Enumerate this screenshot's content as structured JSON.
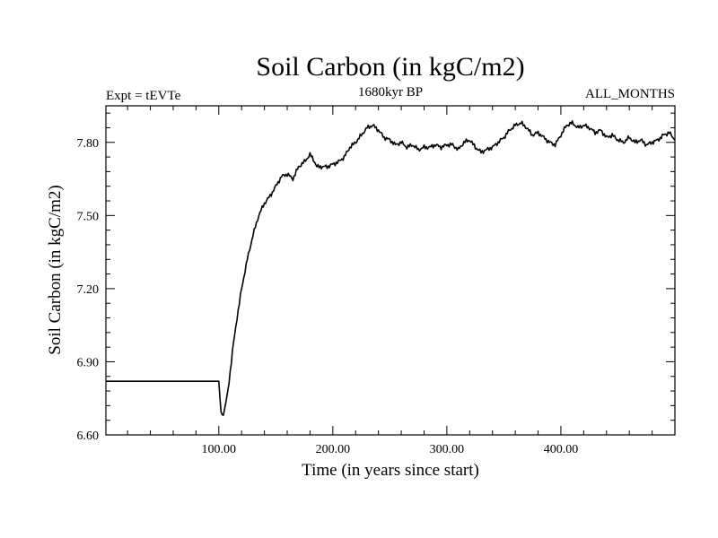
{
  "chart_data": {
    "type": "line",
    "title": "Soil Carbon (in kgC/m2)",
    "subtitle_left": "Expt = tEVTe",
    "subtitle_center": "1680kyr BP",
    "subtitle_right": "ALL_MONTHS",
    "xlabel": "Time (in years since start)",
    "ylabel": "Soil Carbon (in kgC/m2)",
    "xlim": [
      1,
      500
    ],
    "ylim": [
      6.6,
      7.95
    ],
    "x_ticks": [
      100,
      200,
      300,
      400
    ],
    "x_tick_labels": [
      "100.00",
      "200.00",
      "300.00",
      "400.00"
    ],
    "y_ticks": [
      6.6,
      6.9,
      7.2,
      7.5,
      7.8
    ],
    "y_tick_labels": [
      "6.60",
      "6.90",
      "7.20",
      "7.50",
      "7.80"
    ],
    "grid": false,
    "series": [
      {
        "name": "Soil Carbon",
        "color": "#000000",
        "x": [
          1,
          100,
          101,
          102,
          103,
          105,
          108,
          110,
          113,
          116,
          120,
          125,
          130,
          135,
          140,
          145,
          150,
          155,
          160,
          165,
          170,
          175,
          180,
          183,
          186,
          190,
          195,
          200,
          205,
          210,
          215,
          220,
          225,
          230,
          235,
          240,
          245,
          250,
          255,
          260,
          265,
          270,
          275,
          280,
          285,
          290,
          295,
          300,
          305,
          310,
          315,
          320,
          325,
          330,
          335,
          340,
          345,
          350,
          355,
          360,
          365,
          370,
          375,
          380,
          385,
          390,
          395,
          400,
          405,
          410,
          415,
          420,
          425,
          430,
          435,
          440,
          445,
          450,
          455,
          460,
          465,
          470,
          475,
          480,
          485,
          490,
          495,
          500
        ],
        "values": [
          6.82,
          6.82,
          6.75,
          6.7,
          6.68,
          6.7,
          6.78,
          6.86,
          6.98,
          7.08,
          7.2,
          7.32,
          7.42,
          7.5,
          7.55,
          7.58,
          7.62,
          7.66,
          7.67,
          7.65,
          7.7,
          7.72,
          7.75,
          7.73,
          7.7,
          7.7,
          7.7,
          7.71,
          7.72,
          7.74,
          7.78,
          7.8,
          7.83,
          7.86,
          7.87,
          7.85,
          7.82,
          7.81,
          7.79,
          7.8,
          7.78,
          7.79,
          7.77,
          7.78,
          7.78,
          7.79,
          7.78,
          7.79,
          7.79,
          7.77,
          7.8,
          7.81,
          7.78,
          7.76,
          7.77,
          7.78,
          7.8,
          7.82,
          7.85,
          7.87,
          7.88,
          7.86,
          7.83,
          7.84,
          7.82,
          7.8,
          7.79,
          7.83,
          7.87,
          7.88,
          7.86,
          7.87,
          7.86,
          7.84,
          7.85,
          7.82,
          7.83,
          7.81,
          7.8,
          7.82,
          7.8,
          7.81,
          7.79,
          7.8,
          7.81,
          7.83,
          7.84,
          7.81
        ]
      }
    ]
  }
}
